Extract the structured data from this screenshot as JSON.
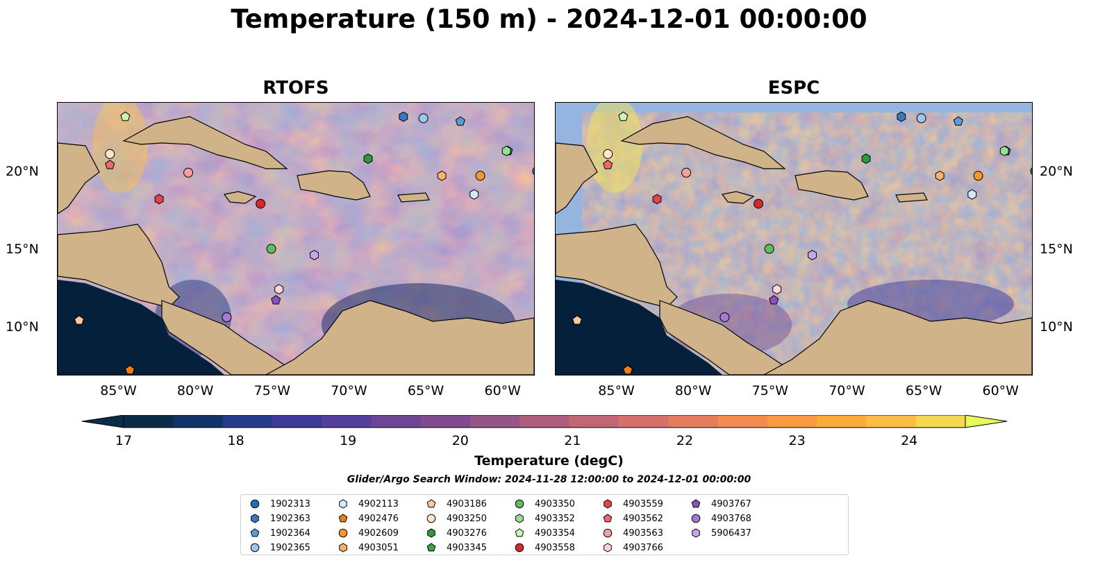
{
  "title": "Temperature (150 m) - 2024-12-01 00:00:00",
  "panels": [
    {
      "title": "RTOFS"
    },
    {
      "title": "ESPC"
    }
  ],
  "lon_ticks": [
    "85°W",
    "80°W",
    "75°W",
    "70°W",
    "65°W",
    "60°W"
  ],
  "lat_ticks": [
    "20°N",
    "15°N",
    "10°N"
  ],
  "map_extent": {
    "lon": [
      -89,
      -58
    ],
    "lat": [
      7,
      24.5
    ]
  },
  "colorbar": {
    "label": "Temperature (degC)",
    "ticks": [
      "17",
      "18",
      "19",
      "20",
      "21",
      "22",
      "23",
      "24"
    ],
    "range": [
      17,
      24.5
    ],
    "colors": [
      "#0b2b47",
      "#123367",
      "#283a8a",
      "#3d3a99",
      "#553f9d",
      "#6c4695",
      "#7f4d8e",
      "#955587",
      "#ad5d7d",
      "#c36674",
      "#d5706a",
      "#e57c5e",
      "#f28b4f",
      "#f89a41",
      "#fbaa3c",
      "#fbbd45",
      "#f5d750"
    ],
    "under_color": "#0b2b47",
    "over_color": "#e8fa5b"
  },
  "search_window": "Glider/Argo Search Window: 2024-11-28 12:00:00 to 2024-12-01 00:00:00",
  "floats": [
    {
      "id": "1902313",
      "marker": "circle",
      "color": "#1f6fb5",
      "lon": -57.8,
      "lat": 20.1
    },
    {
      "id": "1902363",
      "marker": "hexagon",
      "color": "#3a78c2",
      "lon": -66.5,
      "lat": 23.6
    },
    {
      "id": "1902364",
      "marker": "pentagon",
      "color": "#5d9bdc",
      "lon": -62.8,
      "lat": 23.3
    },
    {
      "id": "1902365",
      "marker": "circle",
      "color": "#9ec5ea",
      "lon": -65.2,
      "lat": 23.5
    },
    {
      "id": "4902113",
      "marker": "hexagon",
      "color": "#d3e8f8",
      "lon": -61.9,
      "lat": 18.6
    },
    {
      "id": "4902476",
      "marker": "pentagon",
      "color": "#f07c14",
      "lon": -84.3,
      "lat": 7.3
    },
    {
      "id": "4902609",
      "marker": "circle",
      "color": "#f5962e",
      "lon": -61.5,
      "lat": 19.8
    },
    {
      "id": "4903051",
      "marker": "hexagon",
      "color": "#f8b26d",
      "lon": -64.0,
      "lat": 19.8
    },
    {
      "id": "4903186",
      "marker": "pentagon",
      "color": "#fbc99c",
      "lon": -87.6,
      "lat": 10.5
    },
    {
      "id": "4903250",
      "marker": "circle",
      "color": "#fde6c9",
      "lon": -85.6,
      "lat": 21.2
    },
    {
      "id": "4903276",
      "marker": "hexagon",
      "color": "#2c9a3a",
      "lon": -68.8,
      "lat": 20.9
    },
    {
      "id": "4903345",
      "marker": "pentagon",
      "color": "#33a447",
      "lon": -59.7,
      "lat": 21.4
    },
    {
      "id": "4903350",
      "marker": "circle",
      "color": "#5cc060",
      "lon": -75.1,
      "lat": 15.1
    },
    {
      "id": "4903352",
      "marker": "hexagon",
      "color": "#98de92",
      "lon": -59.8,
      "lat": 21.4
    },
    {
      "id": "4903354",
      "marker": "pentagon",
      "color": "#c8f6b8",
      "lon": -84.6,
      "lat": 23.6
    },
    {
      "id": "4903558",
      "marker": "circle",
      "color": "#d42a2a",
      "lon": -75.8,
      "lat": 18.0
    },
    {
      "id": "4903559",
      "marker": "hexagon",
      "color": "#e0444c",
      "lon": -82.4,
      "lat": 18.3
    },
    {
      "id": "4903562",
      "marker": "pentagon",
      "color": "#ec6870",
      "lon": -85.6,
      "lat": 20.5
    },
    {
      "id": "4903563",
      "marker": "circle",
      "color": "#f3a0a0",
      "lon": -80.5,
      "lat": 20.0
    },
    {
      "id": "4903766",
      "marker": "hexagon",
      "color": "#fbd6d6",
      "lon": -74.6,
      "lat": 12.5
    },
    {
      "id": "4903767",
      "marker": "pentagon",
      "color": "#8a4fc2",
      "lon": -74.8,
      "lat": 11.8
    },
    {
      "id": "4903768",
      "marker": "circle",
      "color": "#a879d4",
      "lon": -78.0,
      "lat": 10.7
    },
    {
      "id": "5906437",
      "marker": "hexagon",
      "color": "#c9a5ec",
      "lon": -72.3,
      "lat": 14.7
    }
  ]
}
